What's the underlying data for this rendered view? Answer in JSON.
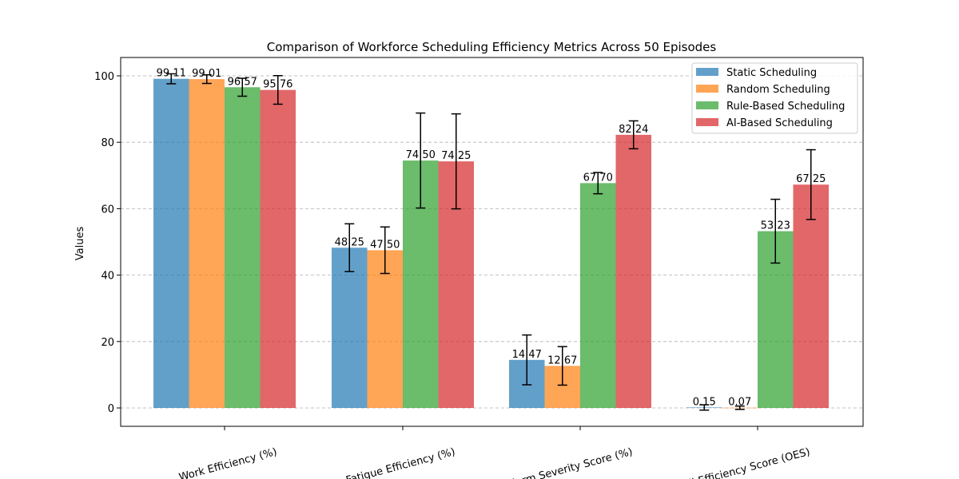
{
  "chart_data": {
    "type": "bar",
    "title": "Comparison of Workforce Scheduling Efficiency Metrics Across 50 Episodes",
    "xlabel": "",
    "ylabel": "Values",
    "ylim": [
      -5.5,
      105.5
    ],
    "yticks": [
      0,
      20,
      40,
      60,
      80,
      100
    ],
    "grid": "horizontal dashed",
    "legend_position": "top-right",
    "categories": [
      "Work Efficiency (%)",
      "Fatigue Efficiency (%)",
      "Alarm Severity Score (%)",
      "Overall Efficiency Score (OES)"
    ],
    "series": [
      {
        "name": "Static Scheduling",
        "color": "#1f77b4",
        "values": [
          99.11,
          48.25,
          14.47,
          0.15
        ],
        "labels": [
          "99.11",
          "48.25",
          "14.47",
          "0.15"
        ],
        "errors": [
          1.5,
          7.2,
          7.5,
          0.8
        ]
      },
      {
        "name": "Random Scheduling",
        "color": "#ff7f0e",
        "values": [
          99.01,
          47.5,
          12.67,
          0.07
        ],
        "labels": [
          "99.01",
          "47.50",
          "12.67",
          "0.07"
        ],
        "errors": [
          1.3,
          7.0,
          5.8,
          0.5
        ]
      },
      {
        "name": "Rule-Based Scheduling",
        "color": "#2ca02c",
        "values": [
          96.57,
          74.5,
          67.7,
          53.23
        ],
        "labels": [
          "96.57",
          "74.50",
          "67.70",
          "53.23"
        ],
        "errors": [
          2.7,
          14.3,
          3.2,
          9.6
        ]
      },
      {
        "name": "AI-Based Scheduling",
        "color": "#d62728",
        "values": [
          95.76,
          74.25,
          82.24,
          67.25
        ],
        "labels": [
          "95.76",
          "74.25",
          "82.24",
          "67.25"
        ],
        "errors": [
          4.3,
          14.3,
          4.2,
          10.5
        ]
      }
    ]
  }
}
